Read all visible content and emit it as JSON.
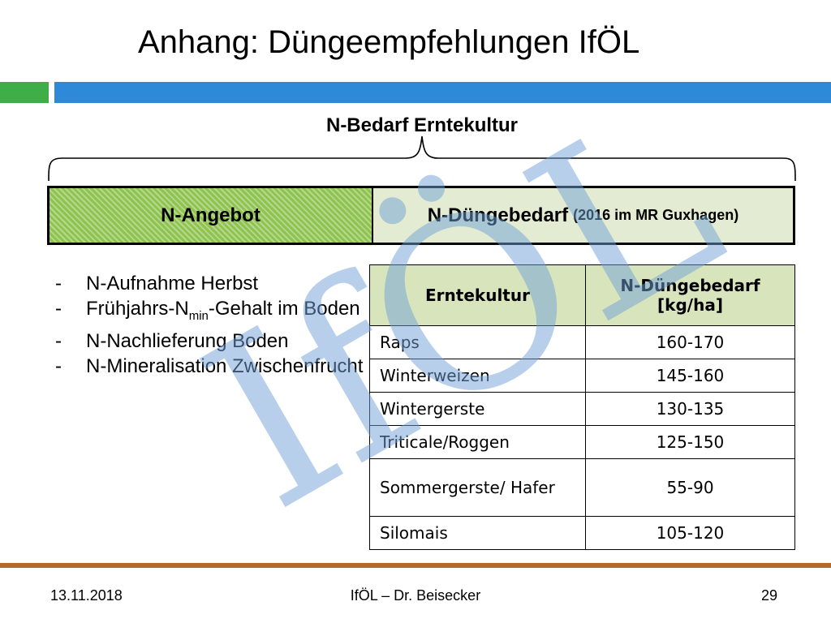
{
  "title": "Anhang: Düngeempfehlungen IfÖL",
  "bedarf_label": "N-Bedarf Erntekultur",
  "angebot_label": "N-Angebot",
  "duengebedarf_label": "N-Düngebedarf",
  "duengebedarf_note": "(2016 im MR Guxhagen)",
  "bullets": [
    {
      "pre": "N-Aufnahme Herbst"
    },
    {
      "pre": "Frühjahrs-N",
      "sub": "min",
      "post": "-Gehalt im Boden"
    },
    {
      "pre": "N-Nachlieferung Boden"
    },
    {
      "pre": "N-Mineralisation Zwischenfrucht"
    }
  ],
  "table": {
    "header": [
      "Erntekultur",
      "N-Düngebedarf [kg/ha]"
    ],
    "rows": [
      [
        "Raps",
        "160-170"
      ],
      [
        "Winterweizen",
        "145-160"
      ],
      [
        "Wintergerste",
        "130-135"
      ],
      [
        "Triticale/Roggen",
        "125-150"
      ],
      [
        "Sommergerste/ Hafer",
        "55-90"
      ],
      [
        "Silomais",
        "105-120"
      ]
    ]
  },
  "watermark": "IfÖL",
  "footer": {
    "date": "13.11.2018",
    "center": "IfÖL – Dr. Beisecker",
    "page": "29"
  },
  "colors": {
    "green_bar": "#3fae49",
    "blue_bar": "#2e8ad8",
    "angebot_fill": "#8ec34f",
    "duengebedarf_fill": "#e3ecd2",
    "table_header_fill": "#d8e4bc",
    "footer_line": "#b26b2a",
    "watermark": "#6f9fd8"
  }
}
